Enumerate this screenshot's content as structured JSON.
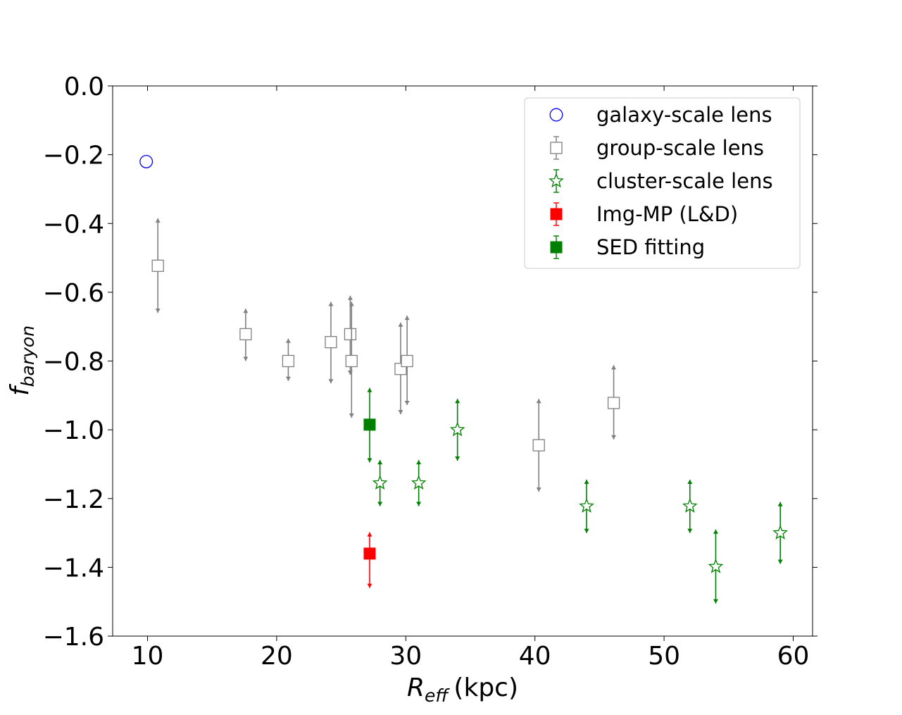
{
  "chart_data": {
    "type": "scatter",
    "title": "",
    "xlabel": {
      "main": "R",
      "sub": "eff",
      "unit": "(kpc)"
    },
    "ylabel": {
      "main": "f",
      "sub": "baryon"
    },
    "xlim": [
      7.3,
      61.5
    ],
    "ylim": [
      -1.6,
      0.0
    ],
    "xticks": [
      10,
      20,
      30,
      40,
      50,
      60
    ],
    "yticks": [
      0.0,
      -0.2,
      -0.4,
      -0.6,
      -0.8,
      -1.0,
      -1.2,
      -1.4,
      -1.6
    ],
    "ytick_labels": [
      "0.0",
      "−0.2",
      "−0.4",
      "−0.6",
      "−0.8",
      "−1.0",
      "−1.2",
      "−1.4",
      "−1.6"
    ],
    "legend_position": "top-right",
    "series": [
      {
        "name": "galaxy-scale lens",
        "marker": "circle-open",
        "color": "#0000ff",
        "points": [
          {
            "x": 9.9,
            "y": -0.22
          }
        ]
      },
      {
        "name": "group-scale lens",
        "marker": "square-open",
        "color": "#808080",
        "points": [
          {
            "x": 10.8,
            "y": -0.523,
            "ylo": -0.66,
            "yhi": -0.385
          },
          {
            "x": 17.6,
            "y": -0.722,
            "ylo": -0.8,
            "yhi": -0.648
          },
          {
            "x": 20.9,
            "y": -0.8,
            "ylo": -0.858,
            "yhi": -0.735
          },
          {
            "x": 24.2,
            "y": -0.745,
            "ylo": -0.865,
            "yhi": -0.628
          },
          {
            "x": 25.7,
            "y": -0.722,
            "ylo": -0.84,
            "yhi": -0.61
          },
          {
            "x": 25.8,
            "y": -0.8,
            "ylo": -0.965,
            "yhi": -0.628
          },
          {
            "x": 29.6,
            "y": -0.823,
            "ylo": -0.955,
            "yhi": -0.688
          },
          {
            "x": 30.1,
            "y": -0.8,
            "ylo": -0.928,
            "yhi": -0.668
          },
          {
            "x": 40.3,
            "y": -1.045,
            "ylo": -1.18,
            "yhi": -0.91
          },
          {
            "x": 46.1,
            "y": -0.922,
            "ylo": -1.028,
            "yhi": -0.812
          }
        ]
      },
      {
        "name": "cluster-scale lens",
        "marker": "star-open",
        "color": "#008000",
        "points": [
          {
            "x": 28.0,
            "y": -1.155,
            "ylo": -1.222,
            "yhi": -1.088
          },
          {
            "x": 31.0,
            "y": -1.155,
            "ylo": -1.222,
            "yhi": -1.088
          },
          {
            "x": 34.0,
            "y": -1.0,
            "ylo": -1.09,
            "yhi": -0.91
          },
          {
            "x": 44.0,
            "y": -1.222,
            "ylo": -1.3,
            "yhi": -1.145
          },
          {
            "x": 52.0,
            "y": -1.222,
            "ylo": -1.3,
            "yhi": -1.145
          },
          {
            "x": 54.0,
            "y": -1.398,
            "ylo": -1.505,
            "yhi": -1.29
          },
          {
            "x": 59.0,
            "y": -1.3,
            "ylo": -1.39,
            "yhi": -1.21
          }
        ]
      },
      {
        "name": "Img-MP (L&D)",
        "marker": "square-filled",
        "color": "#ff0000",
        "points": [
          {
            "x": 27.2,
            "y": -1.36,
            "ylo": -1.46,
            "yhi": -1.298
          }
        ]
      },
      {
        "name": "SED fitting",
        "marker": "square-filled",
        "color": "#008000",
        "points": [
          {
            "x": 27.2,
            "y": -0.985,
            "ylo": -1.095,
            "yhi": -0.878
          }
        ]
      }
    ]
  }
}
